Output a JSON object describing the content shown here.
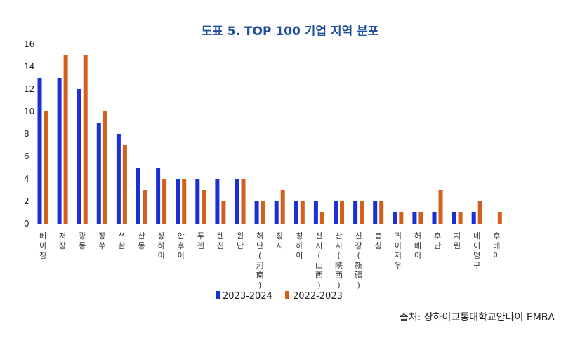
{
  "title": "도표 5. TOP 100 기업 지역 분포",
  "source": "출처: 상하이교통대학교안타이 EMBA",
  "colors": {
    "series1": "#1b2fd6",
    "series2": "#d2601c"
  },
  "chart_data": {
    "type": "bar",
    "title": "도표 5. TOP 100 기업 지역 분포",
    "xlabel": "",
    "ylabel": "",
    "ylim": [
      0,
      16
    ],
    "yticks": [
      0,
      2,
      4,
      6,
      8,
      10,
      12,
      14,
      16
    ],
    "grid": false,
    "legend": "bottom",
    "categories": [
      "베이징",
      "저장",
      "광동",
      "장쑤",
      "쓰촨",
      "산동",
      "상하이",
      "안후이",
      "푸젠",
      "텐진",
      "윈난",
      "허난(河南)",
      "장시",
      "칭하이",
      "산시(山西)",
      "산시(陕西)",
      "신장(新疆)",
      "충칭",
      "귀이저우",
      "허베이",
      "후난",
      "지린",
      "네이멍구",
      "후베이"
    ],
    "series": [
      {
        "name": "2023-2024",
        "values": [
          13,
          13,
          12,
          9,
          8,
          5,
          5,
          4,
          4,
          4,
          4,
          2,
          2,
          2,
          2,
          2,
          2,
          2,
          1,
          1,
          1,
          1,
          1,
          0
        ]
      },
      {
        "name": "2022-2023",
        "values": [
          10,
          15,
          15,
          10,
          7,
          3,
          4,
          4,
          3,
          2,
          4,
          2,
          3,
          2,
          1,
          2,
          2,
          2,
          1,
          1,
          3,
          1,
          2,
          1
        ]
      }
    ]
  }
}
